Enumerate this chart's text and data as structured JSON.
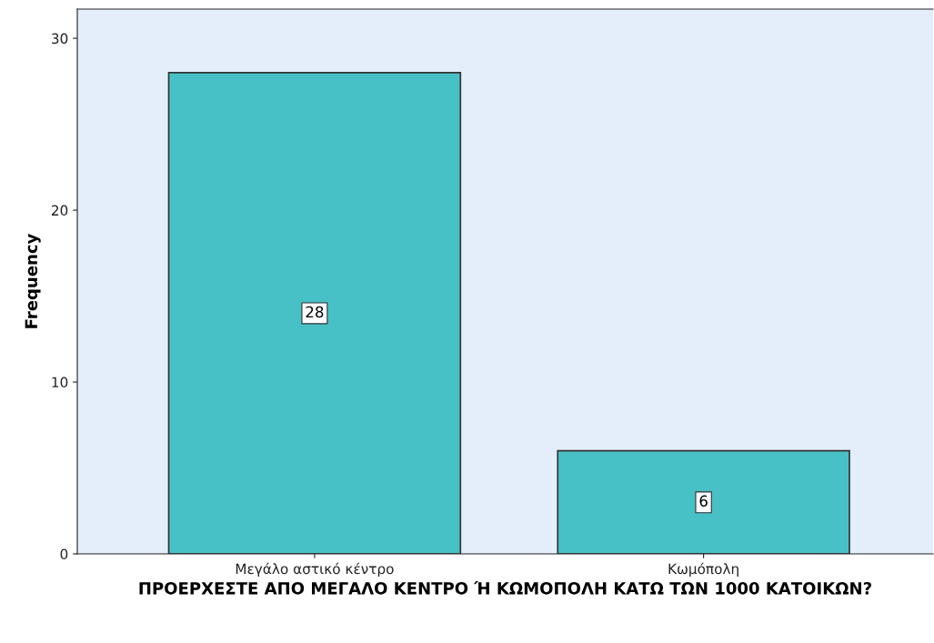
{
  "chart_data": {
    "type": "bar",
    "xlabel": "ΠΡΟΕΡΧΕΣΤΕ ΑΠΟ ΜΕΓΑΛΟ ΚΕΝΤΡΟ Ή ΚΩΜΟΠΟΛΗ ΚΑΤΩ ΤΩΝ 1000 ΚΑΤΟΙΚΩΝ?",
    "ylabel": "Frequency",
    "categories": [
      "Μεγάλο αστικό κέντρο",
      "Κωμόπολη"
    ],
    "values": [
      28,
      6
    ],
    "color": "#48c1c6",
    "ylim": [
      0,
      31.7
    ],
    "yticks": [
      0,
      10,
      20,
      30
    ],
    "grid": false,
    "data_labels": true
  }
}
